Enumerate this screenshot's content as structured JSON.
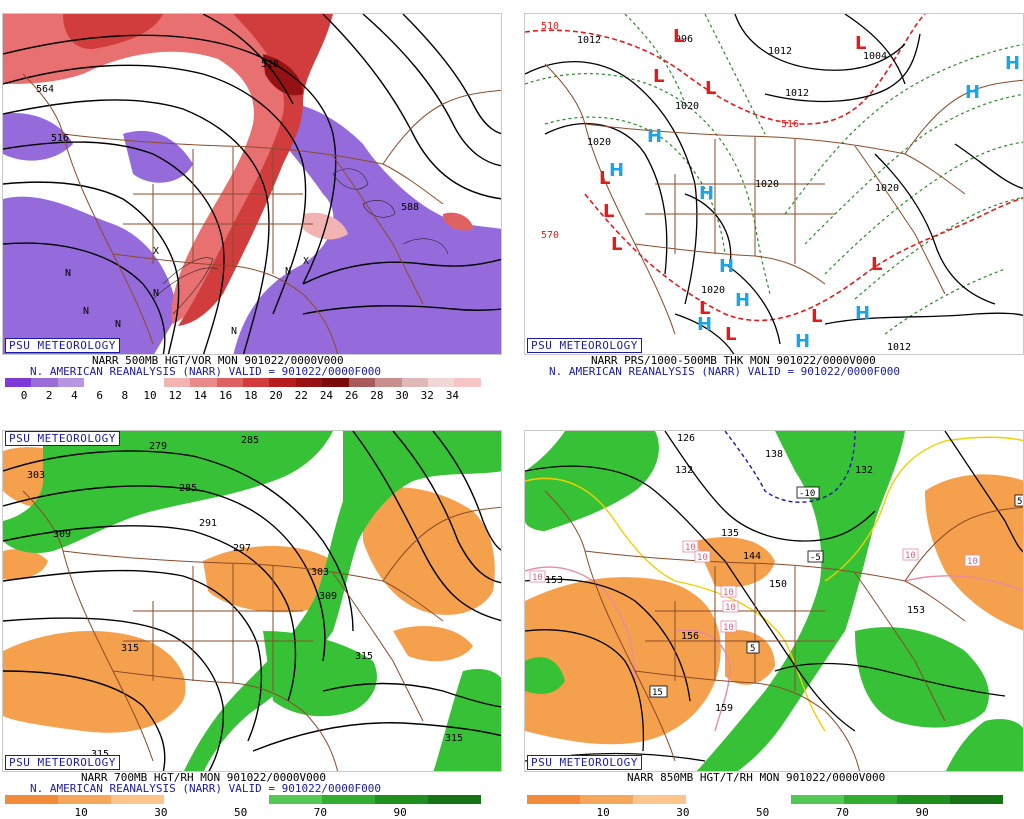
{
  "logo_text": "PSU METEOROLOGY",
  "colors": {
    "vort_pos": [
      "#ffffff",
      "#f2b3b3",
      "#e88a8a",
      "#de6262",
      "#d13d3d",
      "#b81d1d",
      "#961111",
      "#7a0a0a",
      "#a85b5b",
      "#c98f8f",
      "#e0b8b8",
      "#f1d6d6"
    ],
    "vort_neg": [
      "#7e3ad6",
      "#9b6bd8",
      "#b696e0",
      "#ffffff"
    ],
    "rh_dry": "#f5a04d",
    "rh_moist": "#36c136",
    "rh_bar": [
      "#f28c3a",
      "#f7a75c",
      "#fbc58c",
      "#ffffff",
      "#ffffff",
      "#54c854",
      "#2fae2f",
      "#1f8f1f",
      "#167316"
    ],
    "low_marker": "#e51a1a",
    "high_marker": "#1aa6e5",
    "boundary": "#8a4b2a"
  },
  "panels": {
    "top_left": {
      "caption1": "NARR 500MB HGT/VOR MON 901022/0000V000",
      "caption2": "N. AMERICAN REANALYSIS (NARR) VALID = 901022/0000F000",
      "colorbar_ticks": [
        "0",
        "2",
        "4",
        "6",
        "8",
        "10",
        "12",
        "14",
        "16",
        "18",
        "20",
        "22",
        "24",
        "26",
        "28",
        "30",
        "32",
        "34"
      ],
      "labels": [
        "564",
        "516",
        "528",
        "588",
        "N",
        "N",
        "N",
        "N",
        "X",
        "X",
        "N",
        "N"
      ]
    },
    "top_right": {
      "caption1": "NARR PRS/1000-500MB THK MON 901022/0000V000",
      "caption2": "N. AMERICAN REANALYSIS (NARR) VALID = 901022/0000F000",
      "labels": [
        "510",
        "1012",
        "996",
        "1012",
        "1004",
        "1020",
        "1020",
        "1020",
        "1012",
        "1020",
        "570",
        "1012",
        "516",
        "1020"
      ],
      "highs": [
        "H",
        "H",
        "H",
        "H",
        "H",
        "H",
        "H",
        "H",
        "H",
        "H"
      ],
      "lows": [
        "L",
        "L",
        "L",
        "L",
        "L",
        "L",
        "L",
        "L",
        "L",
        "L"
      ]
    },
    "bottom_left": {
      "caption1": "NARR 700MB HGT/RH MON 901022/0000V000",
      "caption2": "N. AMERICAN REANALYSIS (NARR) VALID = 901022/0000F000",
      "colorbar_ticks": [
        "10",
        "30",
        "50",
        "70",
        "90"
      ],
      "labels": [
        "303",
        "279",
        "285",
        "285",
        "291",
        "297",
        "309",
        "303",
        "309",
        "315",
        "315",
        "315",
        "315"
      ]
    },
    "bottom_right": {
      "caption1": "NARR 850MB HGT/T/RH MON 901022/0000V000",
      "colorbar_ticks": [
        "10",
        "30",
        "50",
        "70",
        "90"
      ],
      "labels": [
        "126",
        "132",
        "138",
        "-10",
        "132",
        "135",
        "144",
        "-5",
        "150",
        "156",
        "159",
        "153",
        "153",
        "10",
        "10",
        "10",
        "10",
        "10",
        "10",
        "5",
        "15",
        "5",
        "10",
        "10"
      ]
    }
  }
}
